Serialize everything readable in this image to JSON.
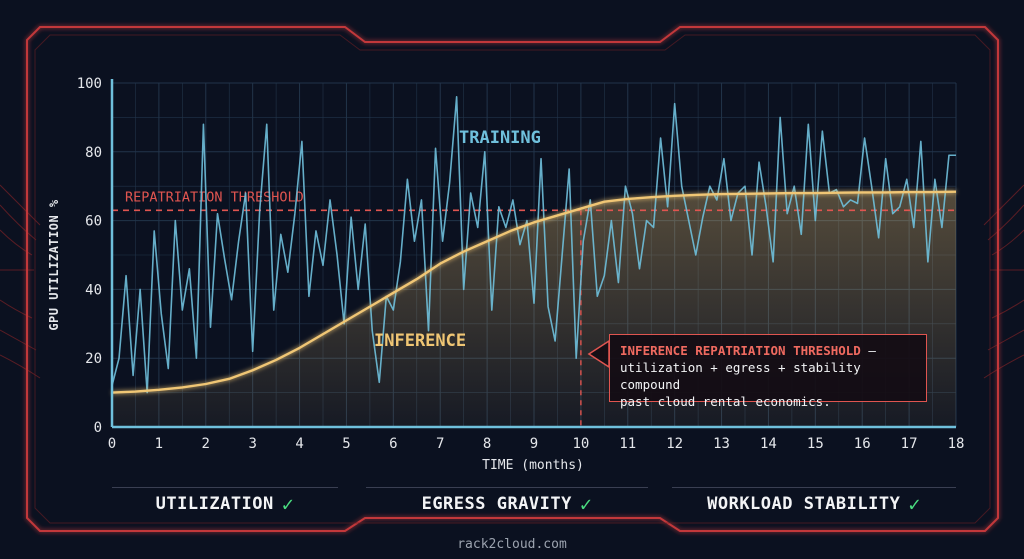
{
  "chart_data": {
    "type": "line",
    "ylabel": "GPU UTILIZATION %",
    "xlabel": "TIME (months)",
    "xlim": [
      0,
      18
    ],
    "ylim": [
      0,
      100
    ],
    "x_ticks": [
      "0",
      "1",
      "2",
      "3",
      "4",
      "5",
      "6",
      "7",
      "8",
      "9",
      "10",
      "11",
      "12",
      "13",
      "14",
      "15",
      "16",
      "17",
      "18"
    ],
    "y_ticks": [
      "0",
      "20",
      "40",
      "60",
      "80",
      "100"
    ],
    "grid": true,
    "threshold": {
      "label": "REPATRIATION THRESHOLD",
      "value": 63
    },
    "marker_x": 10,
    "series": [
      {
        "name": "TRAINING",
        "color": "#6fc0dc",
        "x": [
          0,
          0.15,
          0.3,
          0.45,
          0.6,
          0.75,
          0.9,
          1.05,
          1.2,
          1.35,
          1.5,
          1.65,
          1.8,
          1.95,
          2.1,
          2.25,
          2.4,
          2.55,
          2.7,
          2.85,
          3,
          3.15,
          3.3,
          3.45,
          3.6,
          3.75,
          3.9,
          4.05,
          4.2,
          4.35,
          4.5,
          4.65,
          4.8,
          4.95,
          5.1,
          5.25,
          5.4,
          5.55,
          5.7,
          5.85,
          6,
          6.15,
          6.3,
          6.45,
          6.6,
          6.75,
          6.9,
          7.05,
          7.2,
          7.35,
          7.5,
          7.65,
          7.8,
          7.95,
          8.1,
          8.25,
          8.4,
          8.55,
          8.7,
          8.85,
          9,
          9.15,
          9.3,
          9.45,
          9.6,
          9.75,
          9.9,
          10.05,
          10.2,
          10.35,
          10.5,
          10.65,
          10.8,
          10.95,
          11.1,
          11.25,
          11.4,
          11.55,
          11.7,
          11.85,
          12,
          12.15,
          12.3,
          12.45,
          12.6,
          12.75,
          12.9,
          13.05,
          13.2,
          13.35,
          13.5,
          13.65,
          13.8,
          13.95,
          14.1,
          14.25,
          14.4,
          14.55,
          14.7,
          14.85,
          15,
          15.15,
          15.3,
          15.45,
          15.6,
          15.75,
          15.9,
          16.05,
          16.2,
          16.35,
          16.5,
          16.65,
          16.8,
          16.95,
          17.1,
          17.25,
          17.4,
          17.55,
          17.7,
          17.85,
          18
        ],
        "values": [
          12,
          20,
          44,
          15,
          40,
          10,
          57,
          33,
          17,
          60,
          34,
          46,
          20,
          88,
          29,
          62,
          49,
          37,
          54,
          68,
          22,
          63,
          88,
          34,
          56,
          45,
          62,
          83,
          38,
          57,
          47,
          66,
          50,
          30,
          61,
          40,
          59,
          28,
          13,
          38,
          34,
          48,
          72,
          54,
          66,
          28,
          81,
          54,
          71,
          96,
          40,
          68,
          58,
          80,
          34,
          64,
          58,
          66,
          53,
          60,
          36,
          78,
          35,
          25,
          50,
          75,
          20,
          54,
          66,
          38,
          44,
          60,
          42,
          70,
          62,
          46,
          60,
          58,
          84,
          64,
          94,
          70,
          60,
          50,
          61,
          70,
          66,
          78,
          60,
          68,
          70,
          50,
          77,
          64,
          48,
          90,
          62,
          70,
          56,
          88,
          60,
          86,
          68,
          69,
          64,
          66,
          65,
          84,
          70,
          55,
          78,
          62,
          64,
          72,
          58,
          83,
          48,
          72,
          58,
          79,
          79
        ]
      },
      {
        "name": "INFERENCE",
        "color": "#f0c674",
        "x": [
          0,
          0.5,
          1,
          1.5,
          2,
          2.5,
          3,
          3.5,
          4,
          4.5,
          5,
          5.5,
          6,
          6.5,
          7,
          7.5,
          8,
          8.5,
          9,
          9.5,
          10,
          10.5,
          11,
          11.5,
          12,
          12.5,
          13,
          13.5,
          14,
          14.5,
          15,
          15.5,
          16,
          16.5,
          17,
          17.5,
          18
        ],
        "values": [
          10,
          10.3,
          10.8,
          11.5,
          12.5,
          14,
          16.5,
          19.5,
          23,
          27,
          31,
          35,
          39,
          43,
          47.5,
          51,
          54,
          57,
          59.5,
          61.5,
          63.5,
          65.5,
          66.3,
          66.8,
          67.2,
          67.5,
          67.7,
          67.8,
          67.9,
          68,
          68,
          68.1,
          68.2,
          68.2,
          68.3,
          68.3,
          68.4
        ]
      }
    ],
    "annotations": {
      "training_label": "TRAINING",
      "inference_label": "INFERENCE",
      "callout_title": "INFERENCE REPATRIATION THRESHOLD",
      "callout_dash": "—",
      "callout_line2": "utilization + egress + stability compound",
      "callout_line3": "past cloud rental economics."
    }
  },
  "pillars": [
    {
      "label": "UTILIZATION",
      "check": "✓"
    },
    {
      "label": "EGRESS GRAVITY",
      "check": "✓"
    },
    {
      "label": "WORKLOAD STABILITY",
      "check": "✓"
    }
  ],
  "footer": "rack2cloud.com",
  "colors": {
    "frame": "#c2383a",
    "grid": "#22344a",
    "axis": "#6fc0dc",
    "threshold": "#e05550",
    "inference": "#f0c674",
    "training": "#6fc0dc"
  }
}
